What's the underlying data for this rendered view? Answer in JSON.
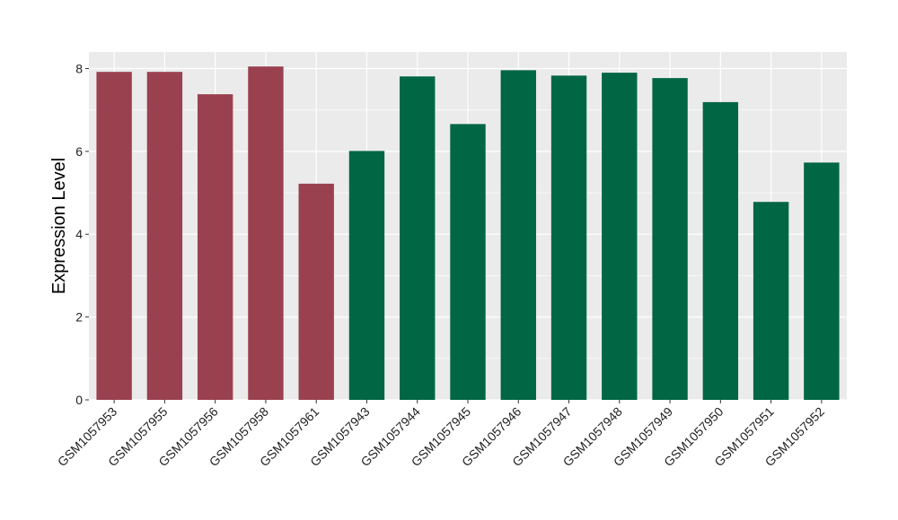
{
  "chart_data": {
    "type": "bar",
    "title": "",
    "xlabel": "",
    "ylabel": "Expression Level",
    "ylim": [
      0,
      8.4
    ],
    "yticks": [
      0,
      2,
      4,
      6,
      8
    ],
    "grid": true,
    "legend": "none",
    "categories": [
      "GSM1057953",
      "GSM1057955",
      "GSM1057956",
      "GSM1057958",
      "GSM1057961",
      "GSM1057943",
      "GSM1057944",
      "GSM1057945",
      "GSM1057946",
      "GSM1057947",
      "GSM1057948",
      "GSM1057949",
      "GSM1057950",
      "GSM1057951",
      "GSM1057952"
    ],
    "values": [
      7.92,
      7.92,
      7.38,
      8.05,
      5.22,
      6.01,
      7.81,
      6.66,
      7.96,
      7.83,
      7.9,
      7.77,
      7.19,
      4.78,
      5.73
    ],
    "bar_groups": [
      0,
      0,
      0,
      0,
      0,
      1,
      1,
      1,
      1,
      1,
      1,
      1,
      1,
      1,
      1
    ],
    "group_colors": [
      "#9a4150",
      "#006644"
    ]
  },
  "style": {
    "panel_background": "#ebebeb",
    "grid_color": "#ffffff"
  }
}
